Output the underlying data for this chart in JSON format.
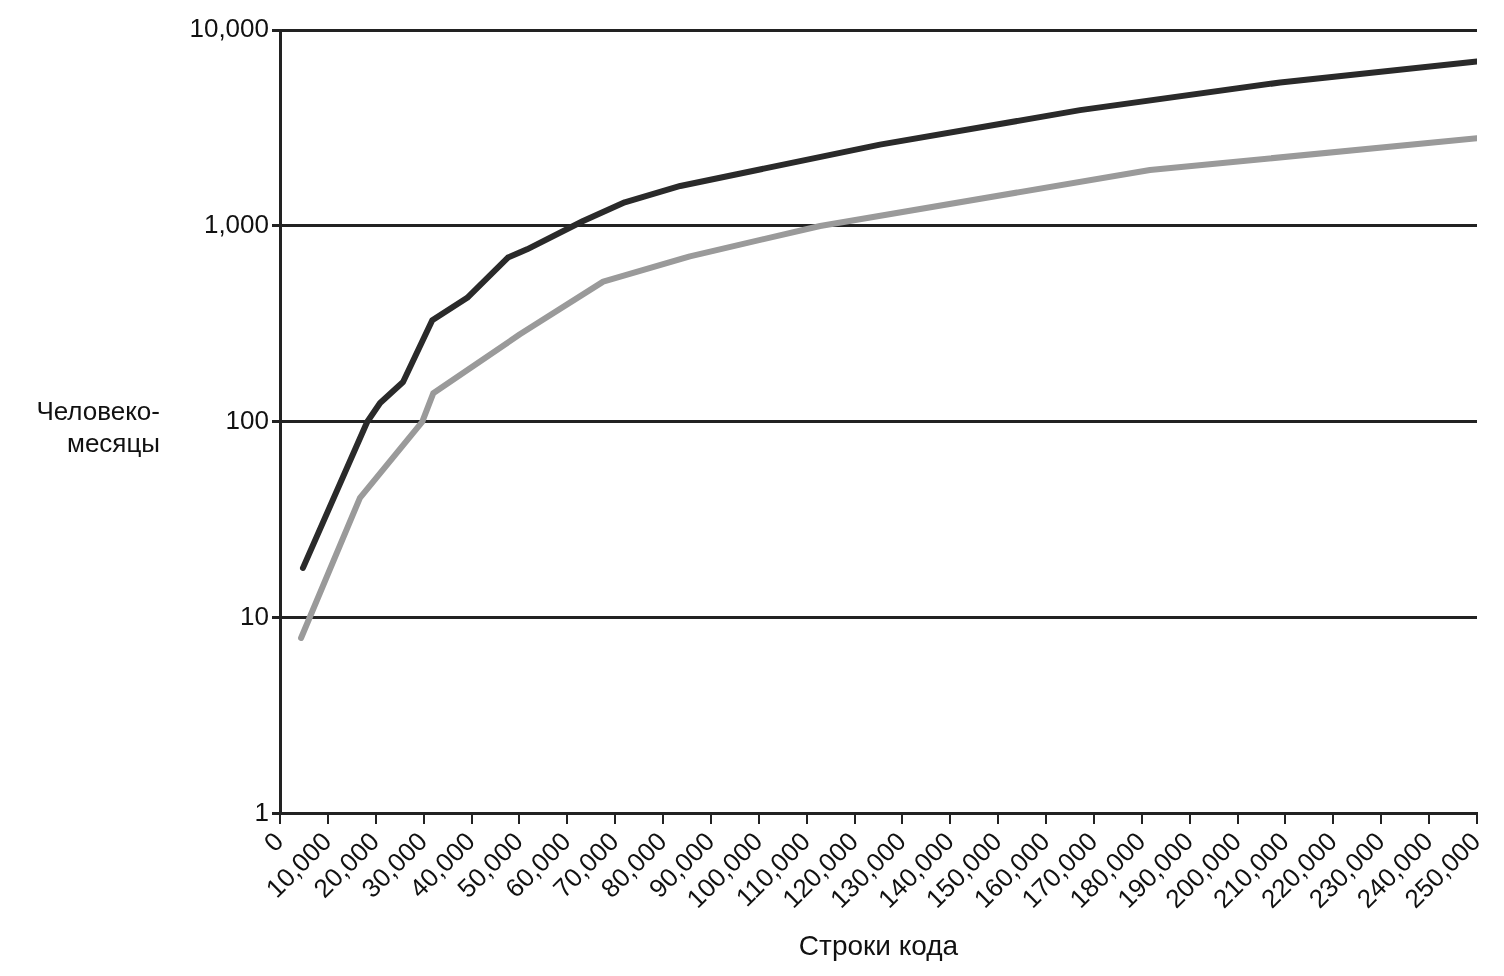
{
  "chart_data": {
    "type": "line",
    "xlabel": "Строки кода",
    "ylabel": "Человеко-месяцы",
    "log": "y",
    "grid": "y",
    "marker": "none",
    "line_style": "solid",
    "xlim": [
      0,
      250000
    ],
    "xticks": [
      0,
      {
        "value": 10000,
        "label": "10,000"
      },
      {
        "value": 20000,
        "label": "20,000"
      },
      {
        "value": 30000,
        "label": "30,000"
      },
      {
        "value": 40000,
        "label": "40,000"
      },
      {
        "value": 50000,
        "label": "50,000"
      },
      {
        "value": 60000,
        "label": "60,000"
      },
      {
        "value": 70000,
        "label": "70,000"
      },
      {
        "value": 80000,
        "label": "80,000"
      },
      {
        "value": 90000,
        "label": "90,000"
      },
      {
        "value": 100000,
        "label": "100,000"
      },
      {
        "value": 110000,
        "label": "110,000"
      },
      {
        "value": 120000,
        "label": "120,000"
      },
      {
        "value": 130000,
        "label": "130,000"
      },
      {
        "value": 140000,
        "label": "140,000"
      },
      {
        "value": 150000,
        "label": "150,000"
      },
      {
        "value": 160000,
        "label": "160,000"
      },
      {
        "value": 170000,
        "label": "170,000"
      },
      {
        "value": 180000,
        "label": "180,000"
      },
      {
        "value": 190000,
        "label": "190,000"
      },
      {
        "value": 200000,
        "label": "200,000"
      },
      {
        "value": 210000,
        "label": "210,000"
      },
      {
        "value": 220000,
        "label": "220,000"
      },
      {
        "value": 230000,
        "label": "230,000"
      },
      {
        "value": 240000,
        "label": "240,000"
      },
      {
        "value": 250000,
        "label": "250,000"
      }
    ],
    "ylim": [
      1,
      10000
    ],
    "yticks": [
      1,
      10,
      100,
      {
        "value": 1000,
        "label": "1,000"
      },
      {
        "value": 10000,
        "label": "10,000"
      }
    ],
    "series": [
      {
        "color": "#2a2a2a",
        "x": [
          4800,
          18200,
          20900,
          25700,
          31800,
          39100,
          47600,
          51600,
          63300,
          72000,
          83600,
          125300,
          167100,
          208900,
          250000
        ],
        "values": [
          18,
          100,
          125,
          160,
          330,
          430,
          690,
          760,
          1060,
          1320,
          1600,
          2600,
          3900,
          5400,
          6900
        ]
      },
      {
        "color": "#9a9a9a",
        "x": [
          4400,
          16700,
          29700,
          32000,
          50100,
          67500,
          85600,
          112800,
          181700,
          250000
        ],
        "values": [
          7.9,
          41,
          100,
          140,
          280,
          520,
          700,
          1000,
          1930,
          2800
        ]
      }
    ]
  }
}
